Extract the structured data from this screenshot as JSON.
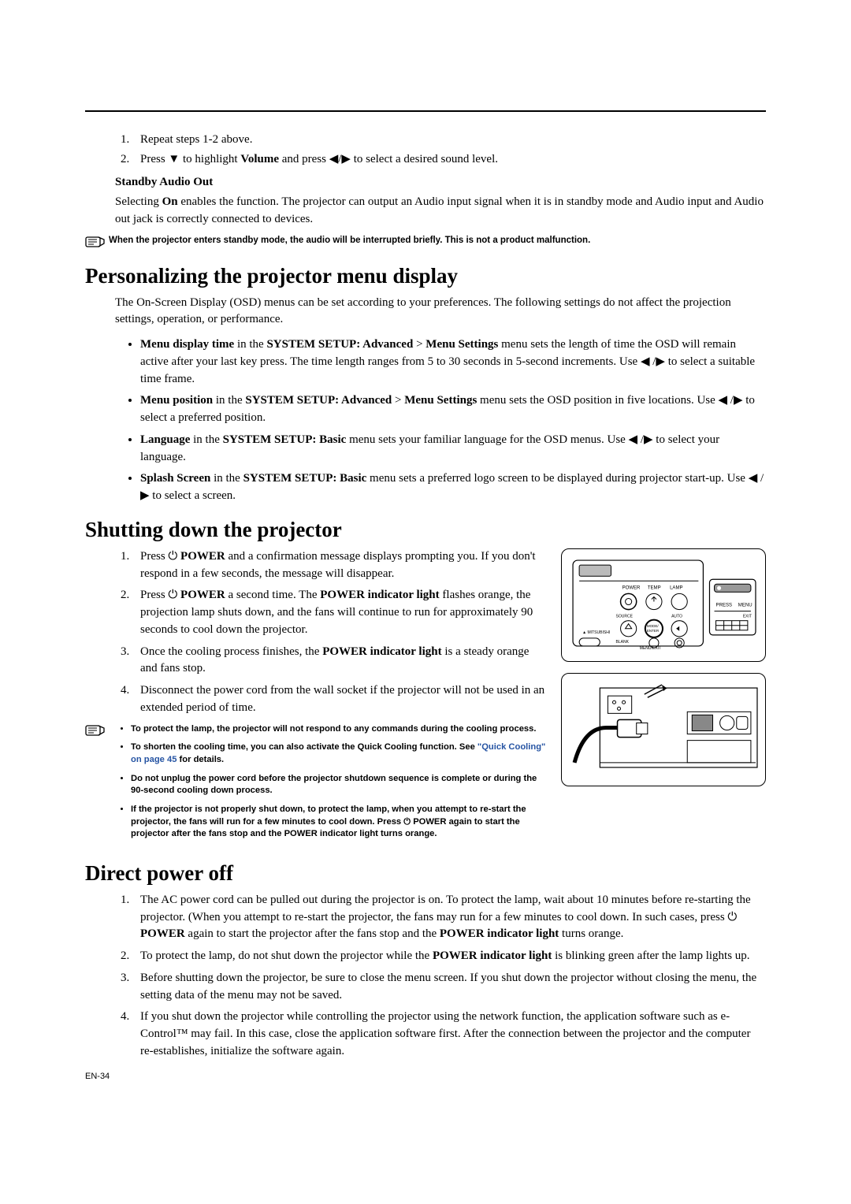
{
  "page": {
    "footer": "EN-34"
  },
  "top_steps": [
    "Repeat steps 1-2 above.",
    "Press ▼ to highlight <b>Volume</b> and press ◀/▶ to select a desired sound level."
  ],
  "standby": {
    "heading": "Standby Audio Out",
    "body": "Selecting <b>On</b> enables the function. The projector can output an Audio input signal when it is in standby mode and Audio input and Audio out jack is correctly connected to devices.",
    "note": "When the projector enters standby mode, the audio will be interrupted briefly. This is not a product malfunction."
  },
  "personalize": {
    "title": "Personalizing the projector menu display",
    "intro": "The On-Screen Display (OSD) menus can be set according to your preferences. The following settings do not affect the projection settings, operation, or performance.",
    "bullets": [
      "<b>Menu display time</b> in the <b>SYSTEM SETUP: Advanced</b> &gt; <b>Menu Settings</b> menu sets the length of time the OSD will remain active after your last key press. The time length ranges from 5 to 30 seconds in 5-second increments. Use ◀ /▶ to select a suitable time frame.",
      "<b>Menu position</b> in the <b>SYSTEM SETUP: Advanced</b> &gt; <b>Menu Settings</b> menu sets the OSD position in five locations. Use ◀ /▶ to select a preferred position.",
      "<b>Language</b> in the <b>SYSTEM SETUP: Basic</b> menu sets your familiar language for the OSD menus. Use ◀ /▶ to select your language.",
      "<b>Splash Screen</b> in the <b>SYSTEM SETUP: Basic</b> menu sets a preferred logo screen to be displayed during projector start-up. Use ◀ /▶ to select a screen."
    ]
  },
  "shutdown": {
    "title": "Shutting down the projector",
    "steps": [
      "Press ⏻ <b>POWER</b> and a confirmation message displays prompting you. If you don't respond in a few seconds, the message will disappear.",
      "Press ⏻ <b>POWER</b> a second time. The <b>POWER indicator light</b> flashes orange, the projection lamp shuts down, and the fans will continue to run for approximately 90 seconds to cool down the projector.",
      "Once the cooling process finishes, the <b>POWER indicator light</b> is a steady orange and fans stop.",
      "Disconnect the power cord from the wall socket if the projector will not be used in an extended period of time."
    ],
    "warnings": [
      "To protect the lamp, the projector will not respond to any commands during the cooling process.",
      "To shorten the cooling time, you can also activate the Quick Cooling function. See <span class=\"link\">\"Quick Cooling\" on page 45</span> for details.",
      " Do not unplug the power cord before the projector shutdown sequence is complete or during the 90-second cooling down process.",
      "If the projector is not properly shut down, to protect the lamp, when you attempt to re-start the projector, the fans will run for a few minutes to cool down. Press ⏻ POWER again to start the projector after the fans stop and the POWER indicator light turns orange."
    ]
  },
  "direct": {
    "title": "Direct power off",
    "steps": [
      "The AC power cord can be pulled out during the projector is on. To protect the lamp, wait about 10 minutes before re-starting the projector. (When you attempt to re-start the projector, the fans may run for a few minutes to cool down. In such cases, press ⏻ <b>POWER</b> again to start the projector after the fans stop and the <b>POWER indicator light</b> turns orange.",
      "To protect the lamp, do not shut down the projector while the <b>POWER indicator light</b> is blinking green after the lamp lights up.",
      "Before shutting down the projector, be sure to close the menu screen. If you shut down the projector without closing the menu, the setting data of the menu may not be saved.",
      "If you shut down the projector while controlling the projector using the network function, the application software such as e-Control™ may fail. In this case, close the application software first. After the connection between the projector and the computer re-establishes, initialize the software again."
    ]
  }
}
